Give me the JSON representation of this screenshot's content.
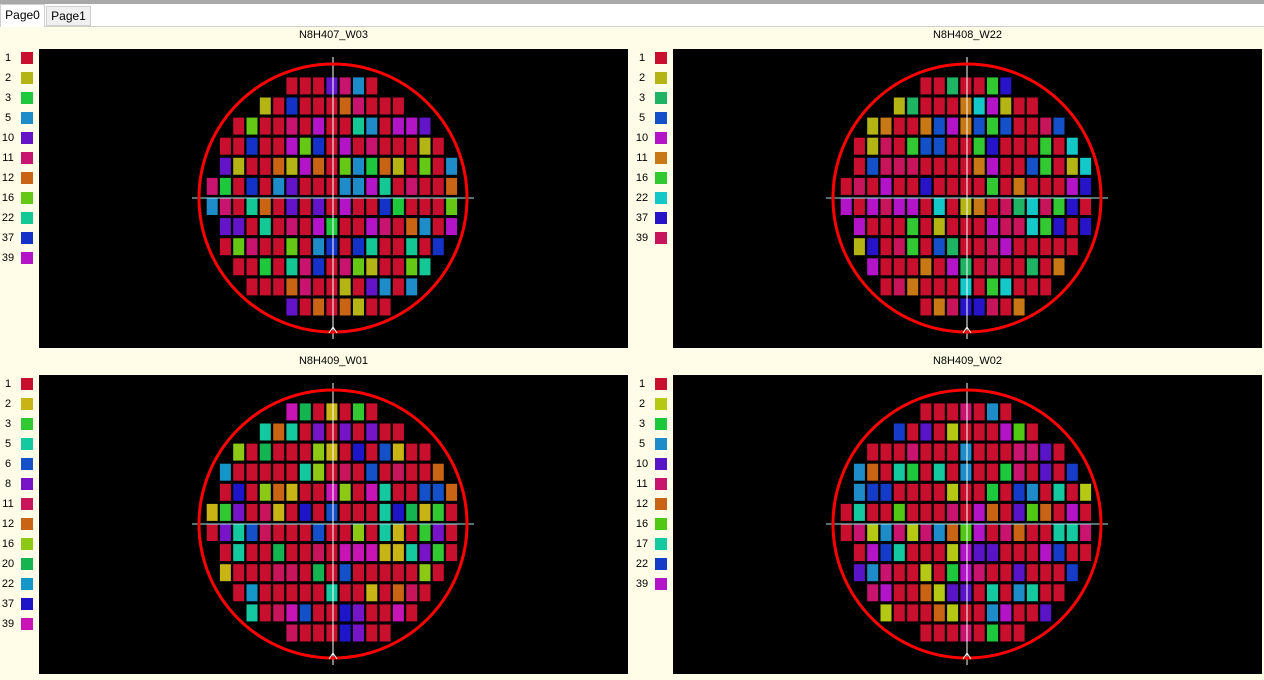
{
  "tabs": [
    {
      "label": "Page0",
      "active": true
    },
    {
      "label": "Page1",
      "active": false
    }
  ],
  "colors": {
    "wafer_outline": "#ff0000",
    "crosshair": "#9fe8f0",
    "map_background": "#000000"
  },
  "wafers": [
    {
      "title": "N8H407_W03",
      "legend": [
        {
          "bin": "1",
          "color": "#c8102e"
        },
        {
          "bin": "2",
          "color": "#b4b414"
        },
        {
          "bin": "3",
          "color": "#1ec83c"
        },
        {
          "bin": "5",
          "color": "#1e8cc8"
        },
        {
          "bin": "10",
          "color": "#6414c8"
        },
        {
          "bin": "11",
          "color": "#c8146e"
        },
        {
          "bin": "12",
          "color": "#c86414"
        },
        {
          "bin": "16",
          "color": "#64c814"
        },
        {
          "bin": "22",
          "color": "#14c896"
        },
        {
          "bin": "37",
          "color": "#1432c8"
        },
        {
          "bin": "39",
          "color": "#b414c8"
        }
      ]
    },
    {
      "title": "N8H408_W22",
      "legend": [
        {
          "bin": "1",
          "color": "#c8102e"
        },
        {
          "bin": "2",
          "color": "#b4b414"
        },
        {
          "bin": "3",
          "color": "#1eb464"
        },
        {
          "bin": "5",
          "color": "#1450c8"
        },
        {
          "bin": "10",
          "color": "#b414c8"
        },
        {
          "bin": "11",
          "color": "#c87814"
        },
        {
          "bin": "16",
          "color": "#32c832"
        },
        {
          "bin": "22",
          "color": "#14c8c8"
        },
        {
          "bin": "37",
          "color": "#2814c8"
        },
        {
          "bin": "39",
          "color": "#c8145a"
        }
      ]
    },
    {
      "title": "N8H409_W01",
      "legend": [
        {
          "bin": "1",
          "color": "#c8102e"
        },
        {
          "bin": "2",
          "color": "#c8b414"
        },
        {
          "bin": "3",
          "color": "#32c832"
        },
        {
          "bin": "5",
          "color": "#14c8a0"
        },
        {
          "bin": "6",
          "color": "#1450c8"
        },
        {
          "bin": "8",
          "color": "#7814c8"
        },
        {
          "bin": "11",
          "color": "#c8145a"
        },
        {
          "bin": "12",
          "color": "#c86414"
        },
        {
          "bin": "16",
          "color": "#8cc814"
        },
        {
          "bin": "20",
          "color": "#14b450"
        },
        {
          "bin": "22",
          "color": "#1496c8"
        },
        {
          "bin": "37",
          "color": "#1e14c8"
        },
        {
          "bin": "39",
          "color": "#c814b4"
        }
      ]
    },
    {
      "title": "N8H409_W02",
      "legend": [
        {
          "bin": "1",
          "color": "#c8102e"
        },
        {
          "bin": "2",
          "color": "#b4c814"
        },
        {
          "bin": "3",
          "color": "#1ec83c"
        },
        {
          "bin": "5",
          "color": "#1e8cc8"
        },
        {
          "bin": "10",
          "color": "#5a14c8"
        },
        {
          "bin": "11",
          "color": "#c8146e"
        },
        {
          "bin": "12",
          "color": "#c86414"
        },
        {
          "bin": "16",
          "color": "#50c814"
        },
        {
          "bin": "17",
          "color": "#14c8a0"
        },
        {
          "bin": "22",
          "color": "#143cc8"
        },
        {
          "bin": "39",
          "color": "#b414c8"
        }
      ]
    }
  ]
}
